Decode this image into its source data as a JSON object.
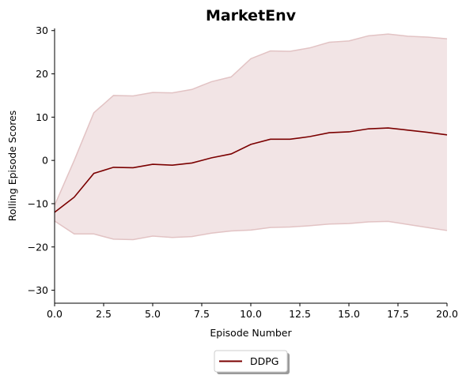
{
  "chart_data": {
    "type": "line",
    "title": "MarketEnv",
    "xlabel": "Episode Number",
    "ylabel": "Rolling Episode Scores",
    "xlim": [
      0,
      20
    ],
    "ylim": [
      -33,
      30.5
    ],
    "xticks": [
      "0.0",
      "2.5",
      "5.0",
      "7.5",
      "10.0",
      "12.5",
      "15.0",
      "17.5",
      "20.0"
    ],
    "xtick_values": [
      0,
      2.5,
      5,
      7.5,
      10,
      12.5,
      15,
      17.5,
      20
    ],
    "yticks": [
      "−30",
      "−20",
      "−10",
      "0",
      "10",
      "20",
      "30"
    ],
    "ytick_values": [
      -30,
      -20,
      -10,
      0,
      10,
      20,
      30
    ],
    "grid": false,
    "legend_position": "bottom-center",
    "x": [
      0,
      1,
      2,
      3,
      4,
      5,
      6,
      7,
      8,
      9,
      10,
      11,
      12,
      13,
      14,
      15,
      16,
      17,
      18,
      19,
      20
    ],
    "series": [
      {
        "name": "DDPG",
        "color": "#7b0000",
        "band_color": "#f2e4e5",
        "band_edge_color": "#e2c3c4",
        "mean": [
          -12.0,
          -8.5,
          -3.0,
          -1.6,
          -1.7,
          -0.9,
          -1.1,
          -0.6,
          0.6,
          1.5,
          3.7,
          4.9,
          4.9,
          5.5,
          6.4,
          6.6,
          7.3,
          7.5,
          7.0,
          6.5,
          5.9
        ],
        "upper": [
          -10.4,
          0.0,
          11.0,
          15.0,
          14.9,
          15.7,
          15.6,
          16.4,
          18.2,
          19.3,
          23.5,
          25.3,
          25.2,
          26.0,
          27.3,
          27.6,
          28.8,
          29.2,
          28.7,
          28.5,
          28.1
        ],
        "lower": [
          -14.0,
          -17.0,
          -17.0,
          -18.2,
          -18.3,
          -17.5,
          -17.8,
          -17.6,
          -16.8,
          -16.3,
          -16.1,
          -15.5,
          -15.4,
          -15.1,
          -14.7,
          -14.6,
          -14.2,
          -14.1,
          -14.8,
          -15.5,
          -16.2
        ]
      }
    ]
  }
}
